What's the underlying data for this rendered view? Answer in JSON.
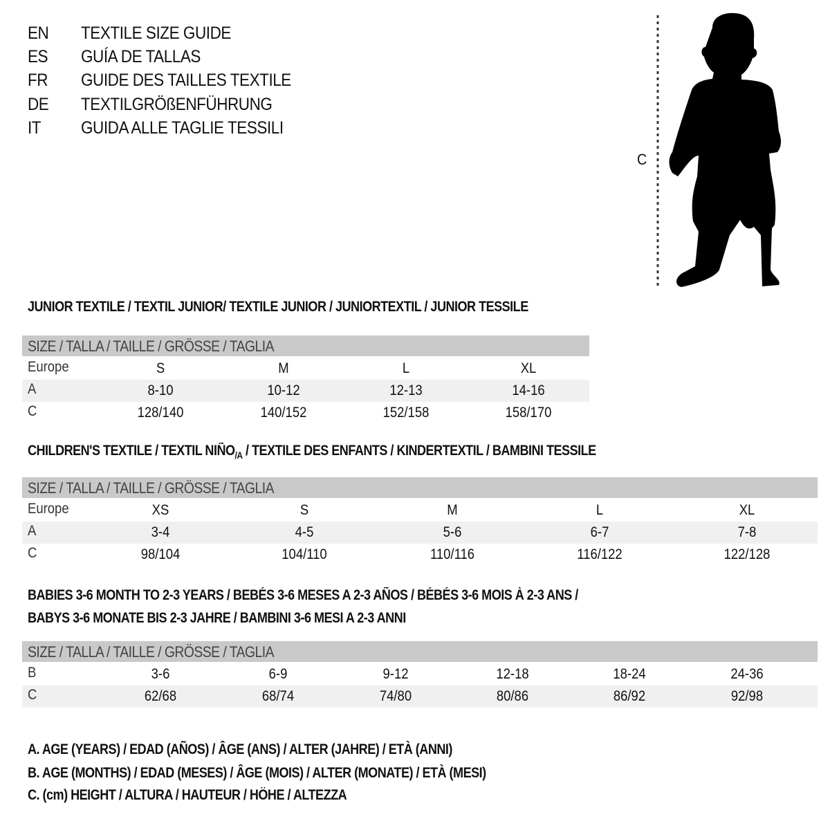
{
  "titles": [
    {
      "code": "EN",
      "text": "TEXTILE SIZE GUIDE"
    },
    {
      "code": "ES",
      "text": "GUÍA DE TALLAS"
    },
    {
      "code": "FR",
      "text": "GUIDE DES TAILLES TEXTILE"
    },
    {
      "code": "DE",
      "text": "TEXTILGRÖßENFÜHRUNG"
    },
    {
      "code": "IT",
      "text": "GUIDA ALLE TAGLIE TESSILI"
    }
  ],
  "figure": {
    "measure_label": "C"
  },
  "sections": {
    "junior": {
      "title": "JUNIOR TEXTILE / TEXTIL JUNIOR/ TEXTILE JUNIOR / JUNIORTEXTIL / JUNIOR TESSILE",
      "header": "SIZE / TALLA / TAILLE / GRÖSSE / TAGLIA",
      "rows": [
        {
          "label": "Europe",
          "cells": [
            "S",
            "M",
            "L",
            "XL"
          ]
        },
        {
          "label": "A",
          "cells": [
            "8-10",
            "10-12",
            "12-13",
            "14-16"
          ]
        },
        {
          "label": "C",
          "cells": [
            "128/140",
            "140/152",
            "152/158",
            "158/170"
          ]
        }
      ]
    },
    "children": {
      "title_before": "CHILDREN'S TEXTILE / TEXTIL NIÑO",
      "title_sub": "/A",
      "title_after": " / TEXTILE DES ENFANTS / KINDERTEXTIL / BAMBINI TESSILE",
      "header": "SIZE / TALLA / TAILLE / GRÖSSE / TAGLIA",
      "rows": [
        {
          "label": "Europe",
          "cells": [
            "XS",
            "S",
            "M",
            "L",
            "XL"
          ]
        },
        {
          "label": "A",
          "cells": [
            "3-4",
            "4-5",
            "5-6",
            "6-7",
            "7-8"
          ]
        },
        {
          "label": "C",
          "cells": [
            "98/104",
            "104/110",
            "110/116",
            "116/122",
            "122/128"
          ]
        }
      ]
    },
    "babies": {
      "title_line1": "BABIES 3-6 MONTH TO 2-3 YEARS / BEBÉS 3-6 MESES A 2-3 AÑOS / BÉBÉS 3-6 MOIS À 2-3 ANS /",
      "title_line2": "BABYS 3-6 MONATE BIS 2-3 JAHRE / BAMBINI 3-6 MESI A 2-3 ANNI",
      "header": "SIZE / TALLA / TAILLE / GRÖSSE / TAGLIA",
      "rows": [
        {
          "label": "B",
          "cells": [
            "3-6",
            "6-9",
            "9-12",
            "12-18",
            "18-24",
            "24-36"
          ]
        },
        {
          "label": "C",
          "cells": [
            "62/68",
            "68/74",
            "74/80",
            "80/86",
            "86/92",
            "92/98"
          ]
        }
      ]
    }
  },
  "legend": [
    "A. AGE (YEARS) / EDAD (AÑOS) / ÂGE (ANS) / ALTER (JAHRE) / ETÀ (ANNI)",
    "B. AGE (MONTHS) / EDAD (MESES) / ÂGE (MOIS) / ALTER (MONATE) / ETÀ (MESI)",
    "C. (cm) HEIGHT / ALTURA / HAUTEUR / HÖHE / ALTEZZA"
  ],
  "colors": {
    "header_bg": "#c9c9c9",
    "alt_row_bg": "#f0f0f0",
    "text": "#111111"
  }
}
